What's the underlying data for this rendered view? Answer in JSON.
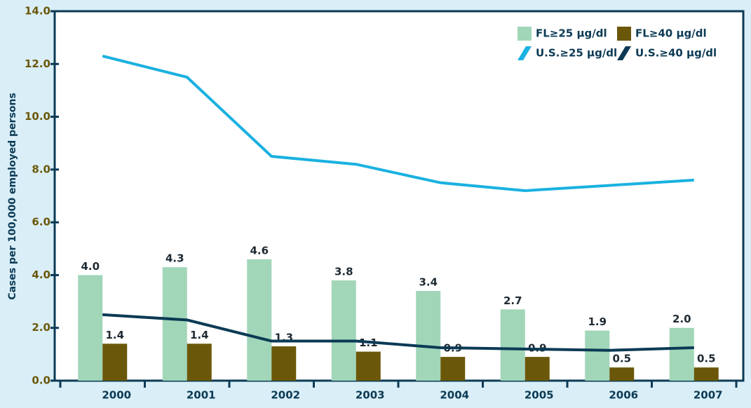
{
  "chart_data": {
    "type": "bar-line",
    "y_label": "Cases per 100,000 employed persons",
    "categories": [
      "2000",
      "2001",
      "2002",
      "2003",
      "2004",
      "2005",
      "2006",
      "2007"
    ],
    "series": [
      {
        "name": "FL≥25 µg/dl",
        "type": "bar",
        "color": "#a1d6b9",
        "values": [
          4.0,
          4.3,
          4.6,
          3.8,
          3.4,
          2.7,
          1.9,
          2.0
        ],
        "value_labels": [
          "4.0",
          "4.3",
          "4.6",
          "3.8",
          "3.4",
          "2.7",
          "1.9",
          "2.0"
        ]
      },
      {
        "name": "FL≥40 µg/dl",
        "type": "bar",
        "color": "#6b5709",
        "values": [
          1.4,
          1.4,
          1.3,
          1.1,
          0.9,
          0.9,
          0.5,
          0.5
        ],
        "value_labels": [
          "1.4",
          "1.4",
          "1.3",
          "1.1",
          "0.9",
          "0.9",
          "0.5",
          "0.5"
        ]
      },
      {
        "name": "U.S.≥25 µg/dl",
        "type": "line",
        "color": "#1ab1e0",
        "values": [
          12.3,
          11.5,
          8.5,
          8.2,
          7.5,
          7.2,
          7.4,
          7.6
        ]
      },
      {
        "name": "U.S.≥40 µg/dl",
        "type": "line",
        "color": "#0b3a55",
        "values": [
          2.5,
          2.3,
          1.5,
          1.5,
          1.25,
          1.2,
          1.15,
          1.25
        ]
      }
    ],
    "ylim": [
      0,
      14
    ],
    "yticks": [
      {
        "value": 0,
        "label": "0.0"
      },
      {
        "value": 2,
        "label": "2.0"
      },
      {
        "value": 4,
        "label": "4.0"
      },
      {
        "value": 6,
        "label": "6.0"
      },
      {
        "value": 8,
        "label": "8.0"
      },
      {
        "value": 10,
        "label": "10.0"
      },
      {
        "value": 12,
        "label": "12.0"
      },
      {
        "value": 14,
        "label": "14.0"
      }
    ],
    "legend": "upper right"
  }
}
